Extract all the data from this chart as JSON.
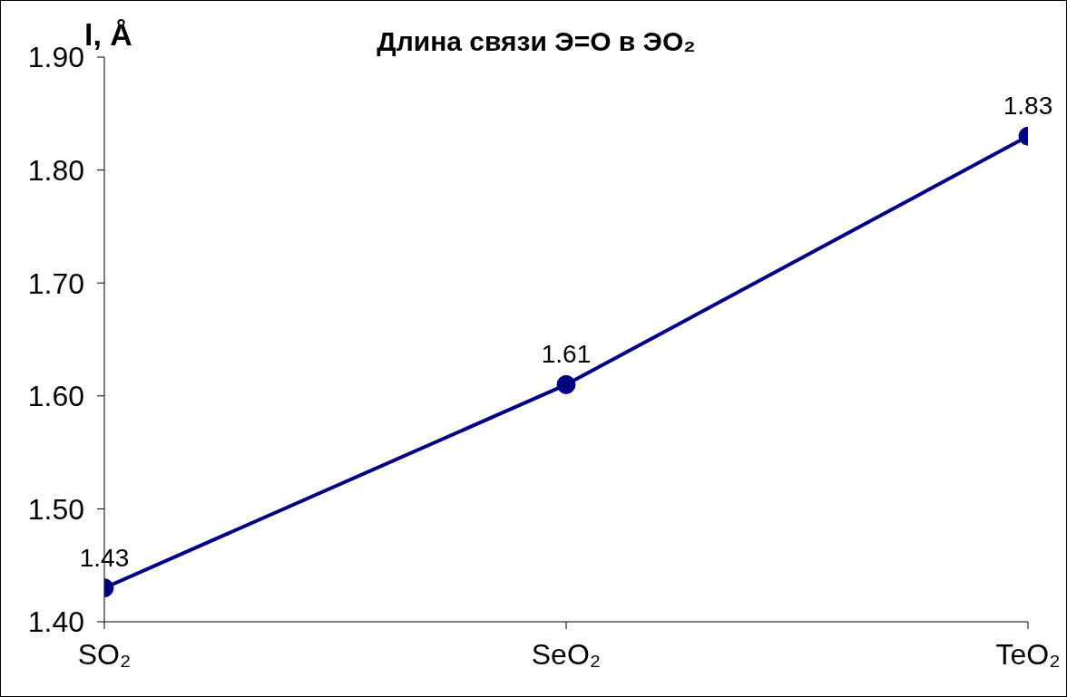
{
  "chart_data": {
    "type": "line",
    "title": "Длина связи Э=О в ЭО₂",
    "ylabel": "l, Å",
    "categories": [
      "SO₂",
      "SeO₂",
      "TeO₂"
    ],
    "series": [
      {
        "color": "#000080",
        "values": [
          1.43,
          1.61,
          1.83
        ]
      }
    ],
    "ylim": [
      1.4,
      1.9
    ],
    "yticks": [
      {
        "value": 1.4,
        "label": "1.40"
      },
      {
        "value": 1.5,
        "label": "1.50"
      },
      {
        "value": 1.6,
        "label": "1.60"
      },
      {
        "value": 1.7,
        "label": "1.70"
      },
      {
        "value": 1.8,
        "label": "1.80"
      },
      {
        "value": 1.9,
        "label": "1.90"
      }
    ],
    "data_labels": true,
    "marker": "circle",
    "line_style": "solid",
    "grid": false
  }
}
